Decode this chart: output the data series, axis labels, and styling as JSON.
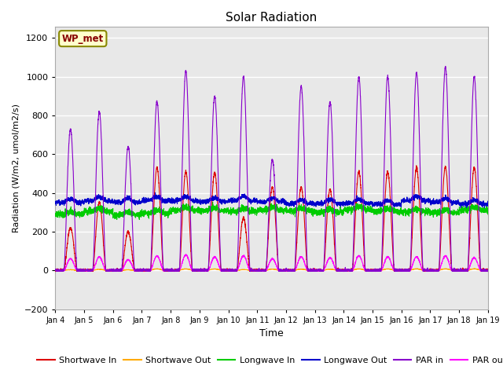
{
  "title": "Solar Radiation",
  "xlabel": "Time",
  "ylabel": "Radiation (W/m2, umol/m2/s)",
  "ylim": [
    -200,
    1260
  ],
  "yticks": [
    -200,
    0,
    200,
    400,
    600,
    800,
    1000,
    1200
  ],
  "plot_bg_color": "#e8e8e8",
  "grid_color": "white",
  "station_label": "WP_met",
  "n_days": 15,
  "n_points_per_day": 288,
  "series": {
    "shortwave_in": {
      "color": "#dd0000",
      "label": "Shortwave In",
      "lw": 0.8
    },
    "shortwave_out": {
      "color": "#ffaa00",
      "label": "Shortwave Out",
      "lw": 0.8
    },
    "longwave_in": {
      "color": "#00cc00",
      "label": "Longwave In",
      "lw": 0.8
    },
    "longwave_out": {
      "color": "#0000cc",
      "label": "Longwave Out",
      "lw": 0.8
    },
    "par_in": {
      "color": "#8800cc",
      "label": "PAR in",
      "lw": 0.8
    },
    "par_out": {
      "color": "#ff00ff",
      "label": "PAR out",
      "lw": 0.8
    }
  },
  "x_tick_labels": [
    "Jan 4",
    "Jan 5",
    "Jan 6",
    "Jan 7",
    "Jan 8",
    "Jan 9",
    "Jan 10",
    "Jan 11",
    "Jan 12",
    "Jan 13",
    "Jan 14",
    "Jan 15",
    "Jan 16",
    "Jan 17",
    "Jan 18",
    "Jan 19"
  ],
  "par_in_peaks": [
    730,
    820,
    640,
    870,
    1030,
    900,
    1000,
    570,
    950,
    870,
    1000,
    1000,
    1020,
    1050,
    1000
  ],
  "par_out_peaks": [
    60,
    70,
    55,
    75,
    80,
    70,
    75,
    60,
    70,
    65,
    75,
    70,
    70,
    75,
    65
  ],
  "sw_in_peaks": [
    220,
    350,
    200,
    530,
    510,
    505,
    270,
    430,
    430,
    420,
    510,
    510,
    530,
    535,
    530
  ],
  "lw_in_base": 300,
  "lw_out_base": 345,
  "legend_ncol": 6
}
